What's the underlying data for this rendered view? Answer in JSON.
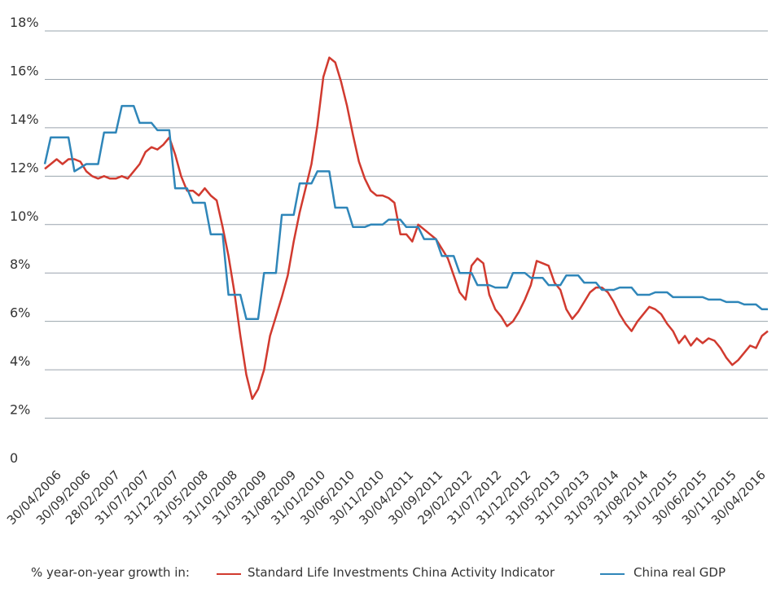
{
  "chart_data": {
    "type": "line",
    "title": "",
    "xlabel": "",
    "ylabel": "",
    "ylim": [
      0,
      18
    ],
    "yticks": [
      0,
      2,
      4,
      6,
      8,
      10,
      12,
      14,
      16,
      18
    ],
    "ytick_labels": [
      "0",
      "2%",
      "4%",
      "6%",
      "8%",
      "10%",
      "12%",
      "14%",
      "16%",
      "18%"
    ],
    "x_range": [
      "2006-04",
      "2016-06"
    ],
    "xtick_labels": [
      "30/04/2006",
      "30/09/2006",
      "28/02/2007",
      "31/07/2007",
      "31/12/2007",
      "31/05/2008",
      "31/10/2008",
      "31/03/2009",
      "31/08/2009",
      "31/01/2010",
      "30/06/2010",
      "30/11/2010",
      "30/04/2011",
      "30/09/2011",
      "29/02/2012",
      "31/07/2012",
      "31/12/2012",
      "31/05/2013",
      "31/10/2013",
      "31/03/2014",
      "31/08/2014",
      "31/01/2015",
      "30/06/2015",
      "30/11/2015",
      "30/04/2016"
    ],
    "legend_position": "bottom",
    "grid": "horizontal",
    "series": [
      {
        "name": "Standard Life Investments China Activity Indicator",
        "color": "#d13a2f",
        "x": [
          "2006-04",
          "2006-05",
          "2006-06",
          "2006-07",
          "2006-08",
          "2006-09",
          "2006-10",
          "2006-11",
          "2006-12",
          "2007-01",
          "2007-02",
          "2007-03",
          "2007-04",
          "2007-05",
          "2007-06",
          "2007-07",
          "2007-08",
          "2007-09",
          "2007-10",
          "2007-11",
          "2007-12",
          "2008-01",
          "2008-02",
          "2008-03",
          "2008-04",
          "2008-05",
          "2008-06",
          "2008-07",
          "2008-08",
          "2008-09",
          "2008-10",
          "2008-11",
          "2008-12",
          "2009-01",
          "2009-02",
          "2009-03",
          "2009-04",
          "2009-05",
          "2009-06",
          "2009-07",
          "2009-08",
          "2009-09",
          "2009-10",
          "2009-11",
          "2009-12",
          "2010-01",
          "2010-02",
          "2010-03",
          "2010-04",
          "2010-05",
          "2010-06",
          "2010-07",
          "2010-08",
          "2010-09",
          "2010-10",
          "2010-11",
          "2010-12",
          "2011-01",
          "2011-02",
          "2011-03",
          "2011-04",
          "2011-05",
          "2011-06",
          "2011-07",
          "2011-08",
          "2011-09",
          "2011-10",
          "2011-11",
          "2011-12",
          "2012-01",
          "2012-02",
          "2012-03",
          "2012-04",
          "2012-05",
          "2012-06",
          "2012-07",
          "2012-08",
          "2012-09",
          "2012-10",
          "2012-11",
          "2012-12",
          "2013-01",
          "2013-02",
          "2013-03",
          "2013-04",
          "2013-05",
          "2013-06",
          "2013-07",
          "2013-08",
          "2013-09",
          "2013-10",
          "2013-11",
          "2013-12",
          "2014-01",
          "2014-02",
          "2014-03",
          "2014-04",
          "2014-05",
          "2014-06",
          "2014-07",
          "2014-08",
          "2014-09",
          "2014-10",
          "2014-11",
          "2014-12",
          "2015-01",
          "2015-02",
          "2015-03",
          "2015-04",
          "2015-05",
          "2015-06",
          "2015-07",
          "2015-08",
          "2015-09",
          "2015-10",
          "2015-11",
          "2015-12",
          "2016-01",
          "2016-02",
          "2016-03",
          "2016-04",
          "2016-05",
          "2016-06"
        ],
        "values": [
          12.3,
          12.5,
          12.7,
          12.5,
          12.7,
          12.7,
          12.6,
          12.2,
          12.0,
          11.9,
          12.0,
          11.9,
          11.9,
          12.0,
          11.9,
          12.2,
          12.5,
          13.0,
          13.2,
          13.1,
          13.3,
          13.6,
          12.9,
          12.0,
          11.4,
          11.4,
          11.2,
          11.5,
          11.2,
          11.0,
          9.9,
          8.7,
          7.2,
          5.4,
          3.8,
          2.8,
          3.2,
          4.0,
          5.4,
          6.2,
          7.0,
          7.9,
          9.3,
          10.5,
          11.5,
          12.5,
          14.1,
          16.1,
          16.9,
          16.7,
          15.9,
          14.9,
          13.7,
          12.6,
          11.9,
          11.4,
          11.2,
          11.2,
          11.1,
          10.9,
          9.6,
          9.6,
          9.3,
          10.0,
          9.8,
          9.6,
          9.4,
          9.0,
          8.6,
          7.9,
          7.2,
          6.9,
          8.3,
          8.6,
          8.4,
          7.1,
          6.5,
          6.2,
          5.8,
          6.0,
          6.4,
          6.9,
          7.5,
          8.5,
          8.4,
          8.3,
          7.6,
          7.3,
          6.5,
          6.1,
          6.4,
          6.8,
          7.2,
          7.4,
          7.4,
          7.2,
          6.8,
          6.3,
          5.9,
          5.6,
          6.0,
          6.3,
          6.6,
          6.5,
          6.3,
          5.9,
          5.6,
          5.1,
          5.4,
          5.0,
          5.3,
          5.1,
          5.3,
          5.2,
          4.9,
          4.5,
          4.2,
          4.4,
          4.7,
          5.0,
          4.9,
          5.4,
          5.6
        ]
      },
      {
        "name": "China real GDP",
        "color": "#2f86b9",
        "x": [
          "2006-04",
          "2006-05",
          "2006-08",
          "2006-09",
          "2006-11",
          "2007-01",
          "2007-02",
          "2007-04",
          "2007-05",
          "2007-07",
          "2007-08",
          "2007-10",
          "2007-11",
          "2008-01",
          "2008-02",
          "2008-04",
          "2008-05",
          "2008-07",
          "2008-08",
          "2008-10",
          "2008-11",
          "2009-01",
          "2009-02",
          "2009-04",
          "2009-05",
          "2009-07",
          "2009-08",
          "2009-10",
          "2009-11",
          "2010-01",
          "2010-02",
          "2010-04",
          "2010-05",
          "2010-07",
          "2010-08",
          "2010-10",
          "2010-11",
          "2011-01",
          "2011-02",
          "2011-04",
          "2011-05",
          "2011-07",
          "2011-08",
          "2011-10",
          "2011-11",
          "2012-01",
          "2012-02",
          "2012-04",
          "2012-05",
          "2012-07",
          "2012-08",
          "2012-10",
          "2012-11",
          "2013-01",
          "2013-02",
          "2013-04",
          "2013-05",
          "2013-07",
          "2013-08",
          "2013-10",
          "2013-11",
          "2014-01",
          "2014-02",
          "2014-04",
          "2014-05",
          "2014-07",
          "2014-08",
          "2014-10",
          "2014-11",
          "2015-01",
          "2015-02",
          "2015-04",
          "2015-05",
          "2015-07",
          "2015-08",
          "2015-10",
          "2015-11",
          "2016-01",
          "2016-02",
          "2016-04",
          "2016-05",
          "2016-06"
        ],
        "values": [
          12.5,
          13.6,
          13.6,
          12.2,
          12.5,
          12.5,
          13.8,
          13.8,
          14.9,
          14.9,
          14.2,
          14.2,
          13.9,
          13.9,
          11.5,
          11.5,
          10.9,
          10.9,
          9.6,
          9.6,
          7.1,
          7.1,
          6.1,
          6.1,
          8.0,
          8.0,
          10.4,
          10.4,
          11.7,
          11.7,
          12.2,
          12.2,
          10.7,
          10.7,
          9.9,
          9.9,
          10.0,
          10.0,
          10.2,
          10.2,
          9.9,
          9.9,
          9.4,
          9.4,
          8.7,
          8.7,
          8.0,
          8.0,
          7.5,
          7.5,
          7.4,
          7.4,
          8.0,
          8.0,
          7.8,
          7.8,
          7.5,
          7.5,
          7.9,
          7.9,
          7.6,
          7.6,
          7.3,
          7.3,
          7.4,
          7.4,
          7.1,
          7.1,
          7.2,
          7.2,
          7.0,
          7.0,
          7.0,
          7.0,
          6.9,
          6.9,
          6.8,
          6.8,
          6.7,
          6.7,
          6.5,
          6.5
        ]
      }
    ]
  },
  "legend": {
    "prefix": "% year-on-year growth in:",
    "items": [
      {
        "label": "Standard Life Investments China Activity Indicator",
        "color": "#d13a2f"
      },
      {
        "label": "China real GDP",
        "color": "#2f86b9"
      }
    ]
  }
}
